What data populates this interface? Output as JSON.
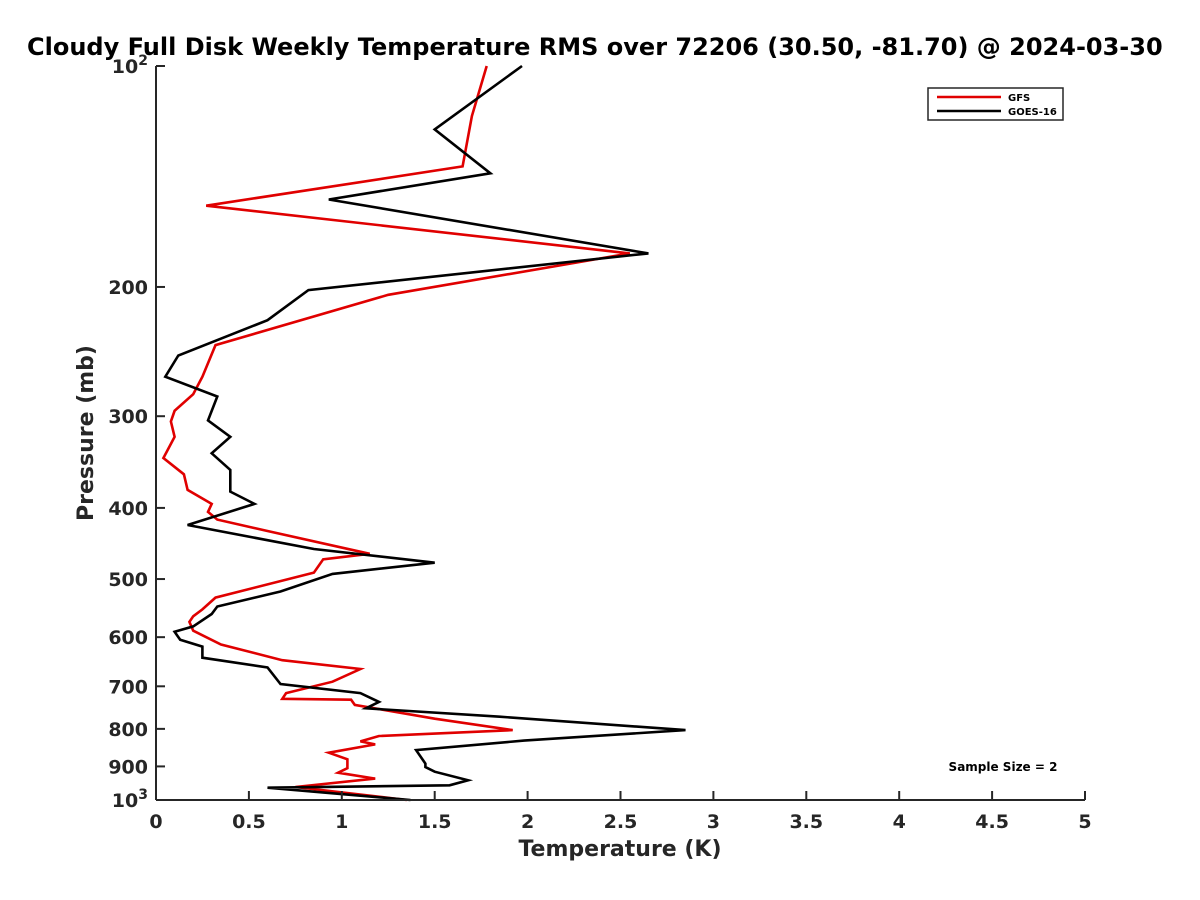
{
  "chart_data": {
    "type": "line",
    "title": "Cloudy Full Disk Weekly Temperature RMS over 72206 (30.50, -81.70) @ 2024-03-30",
    "xlabel": "Temperature (K)",
    "ylabel": "Pressure (mb)",
    "xlim": [
      0,
      5
    ],
    "ylim": [
      100,
      1000
    ],
    "y_scale": "log",
    "y_reversed": true,
    "x_ticks": [
      0,
      0.5,
      1,
      1.5,
      2,
      2.5,
      3,
      3.5,
      4,
      4.5,
      5
    ],
    "x_tick_labels": [
      "0",
      "0.5",
      "1",
      "1.5",
      "2",
      "2.5",
      "3",
      "3.5",
      "4",
      "4.5",
      "5"
    ],
    "y_ticks": [
      {
        "value": 100,
        "base": "10",
        "exp": "2",
        "label": ""
      },
      {
        "value": 200,
        "base": "",
        "exp": "",
        "label": "200"
      },
      {
        "value": 300,
        "base": "",
        "exp": "",
        "label": "300"
      },
      {
        "value": 400,
        "base": "",
        "exp": "",
        "label": "400"
      },
      {
        "value": 500,
        "base": "",
        "exp": "",
        "label": "500"
      },
      {
        "value": 600,
        "base": "",
        "exp": "",
        "label": "600"
      },
      {
        "value": 700,
        "base": "",
        "exp": "",
        "label": "700"
      },
      {
        "value": 800,
        "base": "",
        "exp": "",
        "label": "800"
      },
      {
        "value": 900,
        "base": "",
        "exp": "",
        "label": "900"
      },
      {
        "value": 1000,
        "base": "10",
        "exp": "3",
        "label": ""
      }
    ],
    "legend_position": "top-right",
    "annotation": "Sample Size = 2",
    "series": [
      {
        "name": "GFS",
        "color": "#e00000",
        "x": [
          1.78,
          1.7,
          1.65,
          0.27,
          2.55,
          1.25,
          0.32,
          0.25,
          0.2,
          0.1,
          0.08,
          0.1,
          0.04,
          0.15,
          0.17,
          0.3,
          0.28,
          0.33,
          0.6,
          1.15,
          0.9,
          0.85,
          0.32,
          0.25,
          0.2,
          0.18,
          0.2,
          0.35,
          0.68,
          1.1,
          0.95,
          0.7,
          0.68,
          1.05,
          1.07,
          1.5,
          1.92,
          1.2,
          1.1,
          1.18,
          0.93,
          1.03,
          1.03,
          0.98,
          1.18,
          0.75,
          1.35
        ],
        "y": [
          100,
          117,
          137,
          155,
          180,
          205,
          240,
          265,
          280,
          295,
          305,
          320,
          342,
          360,
          378,
          395,
          405,
          415,
          430,
          462,
          470,
          490,
          530,
          550,
          562,
          572,
          588,
          614,
          645,
          663,
          690,
          715,
          728,
          730,
          742,
          775,
          803,
          818,
          832,
          840,
          862,
          880,
          905,
          918,
          935,
          960,
          1000
        ]
      },
      {
        "name": "GOES-16",
        "color": "#000000",
        "x": [
          1.97,
          1.5,
          1.8,
          0.93,
          2.65,
          0.82,
          0.6,
          0.12,
          0.05,
          0.33,
          0.28,
          0.4,
          0.3,
          0.4,
          0.4,
          0.53,
          0.17,
          0.85,
          1.5,
          0.95,
          0.67,
          0.33,
          0.3,
          0.2,
          0.1,
          0.13,
          0.25,
          0.25,
          0.6,
          0.67,
          1.1,
          1.2,
          1.13,
          1.85,
          2.85,
          1.98,
          1.4,
          1.45,
          1.45,
          1.5,
          1.68,
          1.58,
          0.6,
          1.37
        ],
        "y": [
          100,
          122,
          140,
          152,
          180,
          202,
          222,
          248,
          265,
          282,
          304,
          320,
          337,
          355,
          380,
          395,
          422,
          455,
          475,
          492,
          520,
          545,
          558,
          580,
          590,
          605,
          618,
          640,
          660,
          695,
          715,
          735,
          750,
          770,
          803,
          830,
          855,
          892,
          902,
          915,
          940,
          955,
          962,
          1000
        ]
      }
    ]
  }
}
